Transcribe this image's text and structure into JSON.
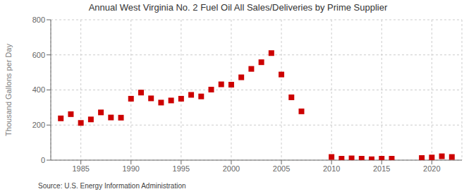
{
  "chart_data": {
    "type": "scatter",
    "title": "Annual West Virginia No. 2 Fuel Oil All Sales/Deliveries by Prime Supplier",
    "ylabel": "Thousand Gallons per Day",
    "annotations": [
      "Source: U.S. Energy Information Administration"
    ],
    "x": [
      1983,
      1984,
      1985,
      1986,
      1987,
      1988,
      1989,
      1990,
      1991,
      1992,
      1993,
      1994,
      1995,
      1996,
      1997,
      1998,
      1999,
      2000,
      2001,
      2002,
      2003,
      2004,
      2005,
      2006,
      2007,
      2010,
      2011,
      2012,
      2013,
      2014,
      2015,
      2016,
      2019,
      2020,
      2021,
      2022
    ],
    "values": [
      238,
      262,
      212,
      232,
      272,
      243,
      242,
      350,
      385,
      352,
      328,
      340,
      350,
      372,
      363,
      402,
      432,
      430,
      472,
      520,
      558,
      610,
      488,
      358,
      278,
      18,
      8,
      10,
      8,
      5,
      8,
      8,
      12,
      15,
      22,
      18
    ],
    "color": "#cc0000",
    "marker": "square",
    "xlim": [
      1982,
      2023
    ],
    "xticks": [
      1985,
      1990,
      1995,
      2000,
      2005,
      2010,
      2015,
      2020
    ],
    "ylim": [
      0,
      800
    ],
    "yticks": [
      0,
      200,
      400,
      600,
      800
    ],
    "grid": true
  }
}
